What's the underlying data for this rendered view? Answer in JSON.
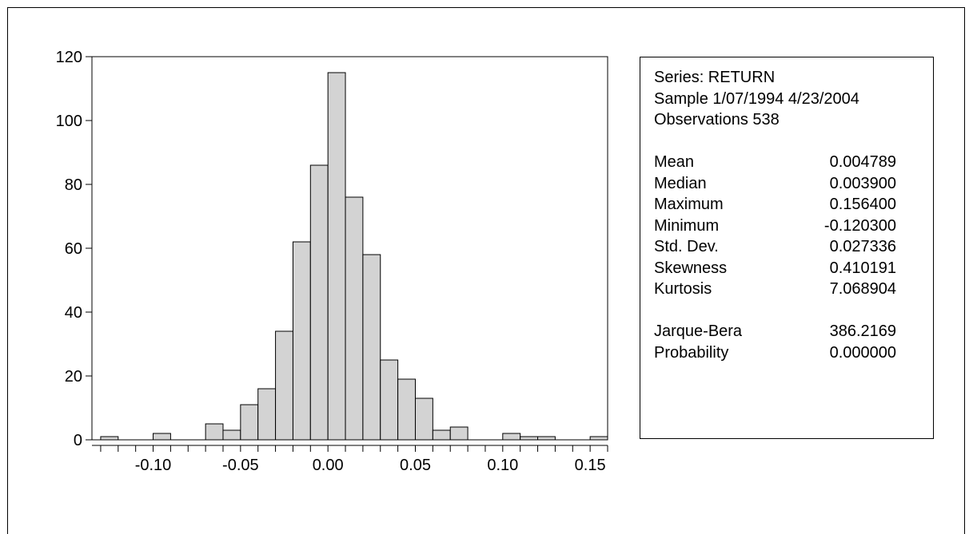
{
  "chart_data": {
    "type": "bar",
    "title": "",
    "xlabel": "",
    "ylabel": "",
    "ylim": [
      0,
      120
    ],
    "y_ticks": [
      0,
      20,
      40,
      60,
      80,
      100,
      120
    ],
    "y_tick_labels": [
      "0",
      "20",
      "40",
      "60",
      "80",
      "100",
      "120"
    ],
    "xlim": [
      -0.135,
      0.16
    ],
    "x_ticks": [
      -0.1,
      -0.05,
      0.0,
      0.05,
      0.1,
      0.15
    ],
    "x_tick_labels": [
      "-0.10",
      "-0.05",
      "0.00",
      "0.05",
      "0.10",
      "0.15"
    ],
    "bin_width": 0.01,
    "bins_start": [
      -0.13,
      -0.12,
      -0.11,
      -0.1,
      -0.09,
      -0.08,
      -0.07,
      -0.06,
      -0.05,
      -0.04,
      -0.03,
      -0.02,
      -0.01,
      0.0,
      0.01,
      0.02,
      0.03,
      0.04,
      0.05,
      0.06,
      0.07,
      0.08,
      0.09,
      0.1,
      0.11,
      0.12,
      0.13,
      0.14,
      0.15
    ],
    "values": [
      1,
      0,
      0,
      2,
      0,
      0,
      5,
      3,
      11,
      16,
      34,
      62,
      86,
      115,
      76,
      58,
      25,
      19,
      13,
      3,
      4,
      0,
      0,
      2,
      1,
      1,
      0,
      0,
      1
    ],
    "bar_color": "#d3d3d3",
    "grid": false
  },
  "stats": {
    "series_line": "Series: RETURN",
    "sample_line": "Sample 1/07/1994 4/23/2004",
    "obs_line": "Observations 538",
    "rows": [
      {
        "label": "Mean",
        "value": "0.004789"
      },
      {
        "label": "Median",
        "value": "0.003900"
      },
      {
        "label": "Maximum",
        "value": "0.156400"
      },
      {
        "label": "Minimum",
        "value": "-0.120300"
      },
      {
        "label": "Std. Dev.",
        "value": "0.027336"
      },
      {
        "label": "Skewness",
        "value": "0.410191"
      },
      {
        "label": "Kurtosis",
        "value": "7.068904"
      }
    ],
    "test_rows": [
      {
        "label": "Jarque-Bera",
        "value": "386.2169"
      },
      {
        "label": "Probability",
        "value": "0.000000"
      }
    ]
  }
}
